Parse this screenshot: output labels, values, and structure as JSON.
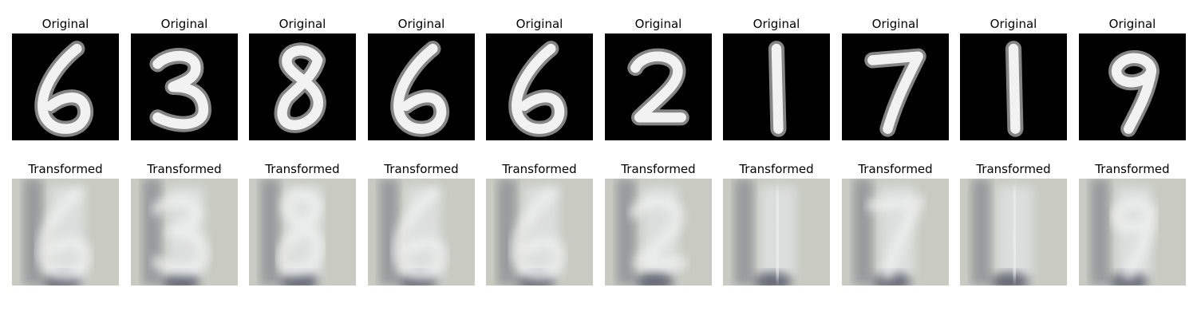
{
  "figure": {
    "rows": [
      {
        "kind": "original",
        "title": "Original",
        "panels": [
          {
            "digit": "6"
          },
          {
            "digit": "3"
          },
          {
            "digit": "8"
          },
          {
            "digit": "6"
          },
          {
            "digit": "6"
          },
          {
            "digit": "2"
          },
          {
            "digit": "1"
          },
          {
            "digit": "7"
          },
          {
            "digit": "1"
          },
          {
            "digit": "9"
          }
        ]
      },
      {
        "kind": "transformed",
        "title": "Transformed",
        "panels": [
          {
            "digit": "6"
          },
          {
            "digit": "3"
          },
          {
            "digit": "8"
          },
          {
            "digit": "6"
          },
          {
            "digit": "6"
          },
          {
            "digit": "2"
          },
          {
            "digit": "1"
          },
          {
            "digit": "7"
          },
          {
            "digit": "1"
          },
          {
            "digit": "9"
          }
        ]
      }
    ],
    "colors": {
      "original_background": "#000000",
      "original_stroke": "#f2f2f2",
      "transformed_background": "#c9cbc3",
      "transformed_dark": "#3c4356",
      "transformed_light": "#e9eef2"
    }
  }
}
